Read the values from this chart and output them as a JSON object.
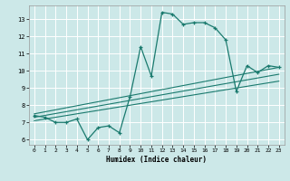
{
  "xlabel": "Humidex (Indice chaleur)",
  "bg_color": "#cce8e8",
  "grid_color": "#ffffff",
  "line_color": "#1a7a6e",
  "xlim": [
    -0.5,
    23.5
  ],
  "ylim": [
    5.7,
    13.8
  ],
  "yticks": [
    6,
    7,
    8,
    9,
    10,
    11,
    12,
    13
  ],
  "xticks": [
    0,
    1,
    2,
    3,
    4,
    5,
    6,
    7,
    8,
    9,
    10,
    11,
    12,
    13,
    14,
    15,
    16,
    17,
    18,
    19,
    20,
    21,
    22,
    23
  ],
  "main_line_x": [
    0,
    1,
    2,
    3,
    4,
    5,
    6,
    7,
    8,
    9,
    10,
    11,
    12,
    13,
    14,
    15,
    16,
    17,
    18,
    19,
    20,
    21,
    22,
    23
  ],
  "main_line_y": [
    7.4,
    7.3,
    7.0,
    7.0,
    7.2,
    6.0,
    6.7,
    6.8,
    6.4,
    8.5,
    11.4,
    9.7,
    13.4,
    13.3,
    12.7,
    12.8,
    12.8,
    12.5,
    11.8,
    8.8,
    10.3,
    9.9,
    10.3,
    10.2
  ],
  "reg_line1_x": [
    0,
    23
  ],
  "reg_line1_y": [
    7.5,
    10.2
  ],
  "reg_line2_x": [
    0,
    23
  ],
  "reg_line2_y": [
    7.3,
    9.8
  ],
  "reg_line3_x": [
    0,
    23
  ],
  "reg_line3_y": [
    7.1,
    9.4
  ]
}
